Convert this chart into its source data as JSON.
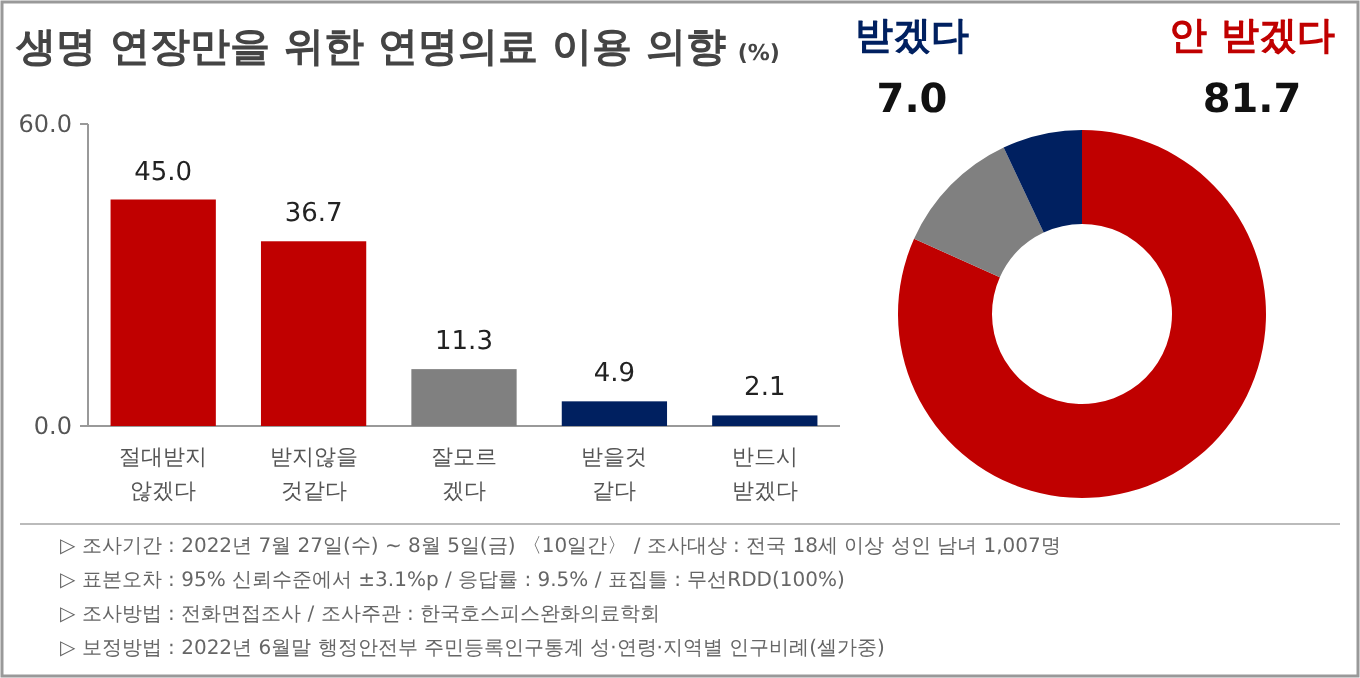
{
  "chart_data": [
    {
      "type": "bar",
      "title": "생명 연장만을 위한 연명의료 이용 의향",
      "ylabel": "(%)",
      "categories": [
        "절대받지\n않겠다",
        "받지않을\n것같다",
        "잘모르\n겠다",
        "받을것\n같다",
        "반드시\n받겠다"
      ],
      "values": [
        45.0,
        36.7,
        11.3,
        4.9,
        2.1
      ],
      "colors": [
        "#c00000",
        "#c00000",
        "#808080",
        "#002060",
        "#002060"
      ],
      "ylim": [
        0,
        60
      ],
      "yticks": [
        {
          "value": 0,
          "label": "0.0"
        },
        {
          "value": 60,
          "label": "60.0"
        }
      ],
      "value_labels": [
        "45.0",
        "36.7",
        "11.3",
        "4.9",
        "2.1"
      ],
      "annotations": [
        "▷ 조사기간 : 2022년 7월 27일(수) ~ 8월 5일(금) 〈10일간〉 / 조사대상 : 전국 18세 이상 성인 남녀 1,007명",
        "▷ 표본오차 : 95% 신뢰수준에서 ±3.1%p / 응답률 : 9.5% / 표집틀 : 무선RDD(100%)",
        "▷ 조사방법 : 전화면접조사 / 조사주관 : 한국호스피스완화의료학회",
        "▷ 보정방법 : 2022년 6월말 행정안전부 주민등록인구통계 성·연령·지역별 인구비례(셀가중)"
      ]
    },
    {
      "type": "donut",
      "categories": [
        "안 받겠다",
        null,
        "받겠다"
      ],
      "values": [
        81.7,
        11.3,
        7.0
      ],
      "colors": [
        "#c00000",
        "#808080",
        "#002060"
      ],
      "value_labels": [
        "81.7",
        null,
        "7.0"
      ]
    }
  ]
}
